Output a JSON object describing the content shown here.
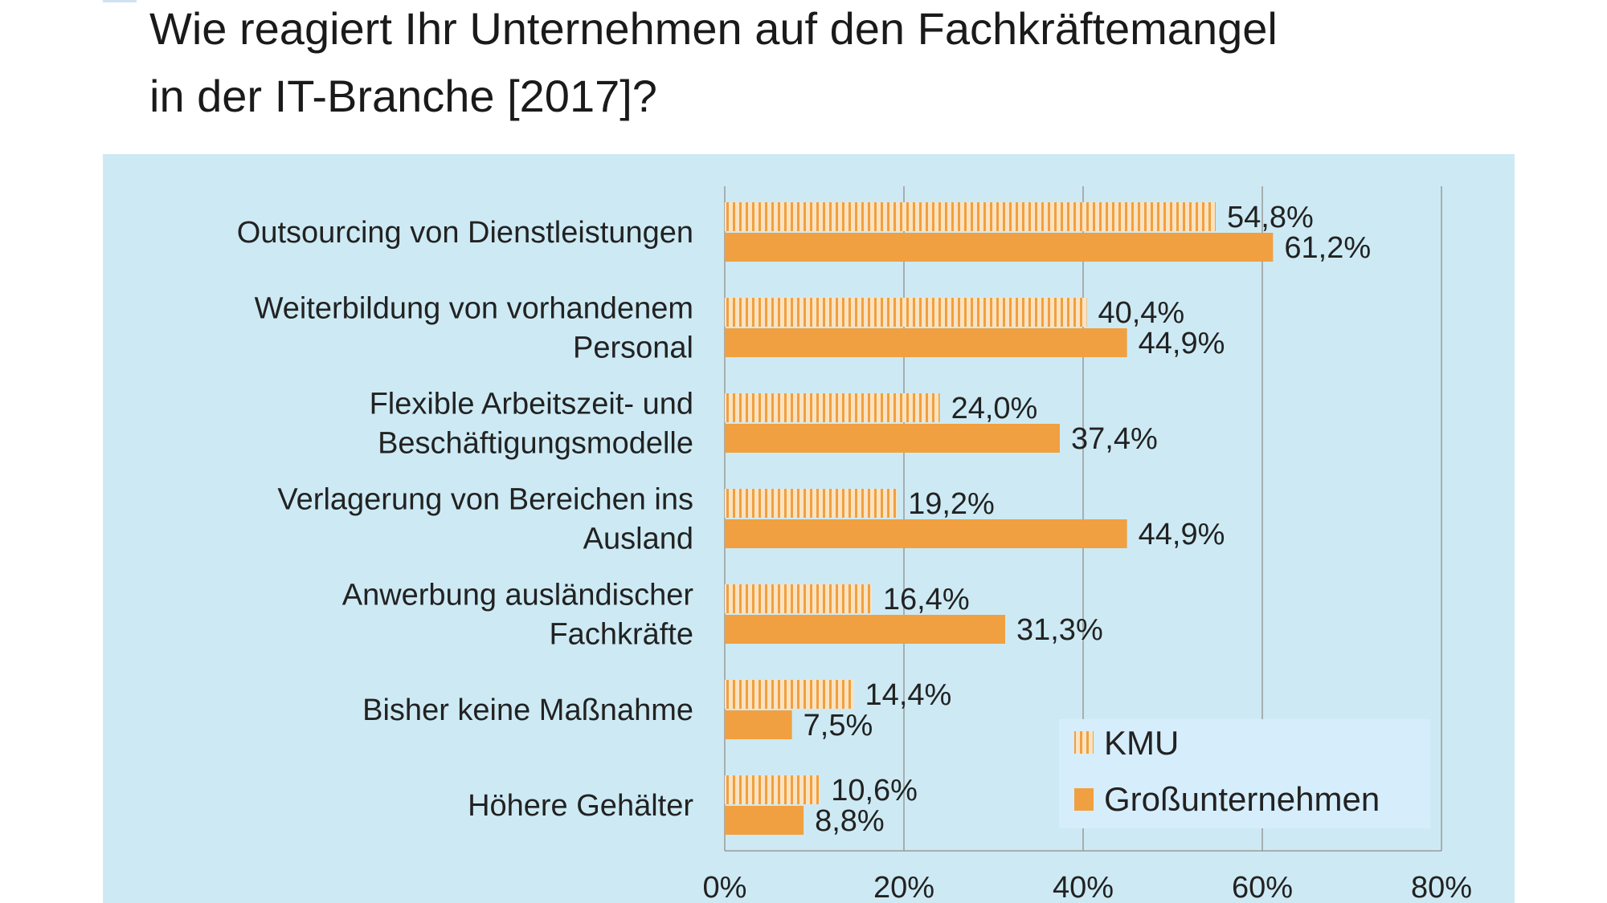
{
  "title_lines": [
    "Wie reagiert Ihr Unternehmen auf den Fachkräftemangel",
    "in der IT-Branche [2017]?"
  ],
  "colors": {
    "panel_bg": "#cdeaf4",
    "bar_orange": "#f0a040",
    "stripe_light": "#fbe3c2",
    "grid": "#9a9a9a"
  },
  "chart_data": {
    "type": "bar",
    "orientation": "horizontal",
    "title": "Wie reagiert Ihr Unternehmen auf den Fachkräftemangel in der IT-Branche [2017]?",
    "categories": [
      [
        "Outsourcing von Dienstleistungen"
      ],
      [
        "Weiterbildung von vorhandenem",
        "Personal"
      ],
      [
        "Flexible Arbeitszeit- und",
        "Beschäftigungsmodelle"
      ],
      [
        "Verlagerung von Bereichen ins",
        "Ausland"
      ],
      [
        "Anwerbung ausländischer",
        "Fachkräfte"
      ],
      [
        "Bisher keine Maßnahme"
      ],
      [
        "Höhere Gehälter"
      ]
    ],
    "series": [
      {
        "name": "KMU",
        "pattern": "striped",
        "values": [
          54.8,
          40.4,
          24.0,
          19.2,
          16.4,
          14.4,
          10.6
        ],
        "labels": [
          "54,8%",
          "40,4%",
          "24,0%",
          "19,2%",
          "16,4%",
          "14,4%",
          "10,6%"
        ]
      },
      {
        "name": "Großunternehmen",
        "pattern": "solid",
        "values": [
          61.2,
          44.9,
          37.4,
          44.9,
          31.3,
          7.5,
          8.8
        ],
        "labels": [
          "61,2%",
          "44,9%",
          "37,4%",
          "44,9%",
          "31,3%",
          "7,5%",
          "8,8%"
        ]
      }
    ],
    "xlim": [
      0,
      80
    ],
    "xticks": [
      {
        "value": 0,
        "label": "0%"
      },
      {
        "value": 20,
        "label": "20%"
      },
      {
        "value": 40,
        "label": "40%"
      },
      {
        "value": 60,
        "label": "60%"
      },
      {
        "value": 80,
        "label": "80%"
      }
    ],
    "grid": true,
    "legend": {
      "position": "bottom-right",
      "entries": [
        "KMU",
        "Großunternehmen"
      ]
    }
  }
}
